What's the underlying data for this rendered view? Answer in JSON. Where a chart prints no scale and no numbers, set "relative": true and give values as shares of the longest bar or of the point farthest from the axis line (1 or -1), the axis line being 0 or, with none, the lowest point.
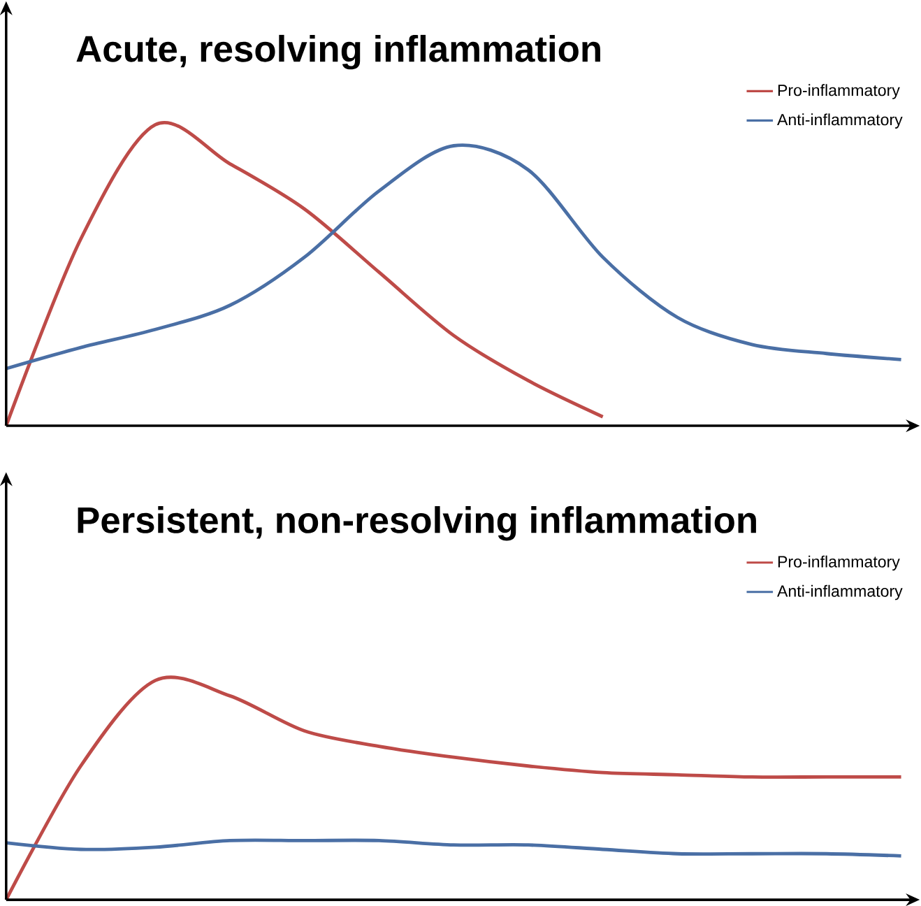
{
  "chart_data": [
    {
      "type": "line",
      "title": "Acute, resolving inflammation",
      "relative": true,
      "legend": "top right",
      "marker": "none",
      "line_style": "solid",
      "categories": [
        null,
        null,
        null,
        null,
        null,
        null,
        null,
        null,
        null,
        null,
        null,
        null,
        null
      ],
      "series": [
        {
          "name": "Pro-inflammatory",
          "color": "#be4b48",
          "values": [
            0,
            0.62,
            1,
            0.87,
            0.72,
            0.51,
            0.3,
            0.15,
            0.03,
            null,
            null,
            null,
            null
          ]
        },
        {
          "name": "Anti-inflammatory",
          "color": "#4a6fa5",
          "values": [
            0.19,
            0.26,
            0.32,
            0.4,
            0.56,
            0.78,
            0.93,
            0.85,
            0.56,
            0.36,
            0.27,
            0.24,
            0.22
          ]
        }
      ]
    },
    {
      "type": "line",
      "title": "Persistent, non-resolving inflammation",
      "relative": true,
      "legend": "top right",
      "marker": "none",
      "line_style": "solid",
      "categories": [
        null,
        null,
        null,
        null,
        null,
        null,
        null,
        null,
        null,
        null,
        null,
        null,
        null
      ],
      "series": [
        {
          "name": "Pro-inflammatory",
          "color": "#be4b48",
          "values": [
            0,
            0.61,
            1,
            0.93,
            0.77,
            0.7,
            0.65,
            0.61,
            0.58,
            0.57,
            0.56,
            0.56,
            0.56
          ]
        },
        {
          "name": "Anti-inflammatory",
          "color": "#4a6fa5",
          "values": [
            0.26,
            0.23,
            0.24,
            0.27,
            0.27,
            0.27,
            0.25,
            0.25,
            0.23,
            0.21,
            0.21,
            0.21,
            0.2
          ]
        }
      ]
    }
  ]
}
